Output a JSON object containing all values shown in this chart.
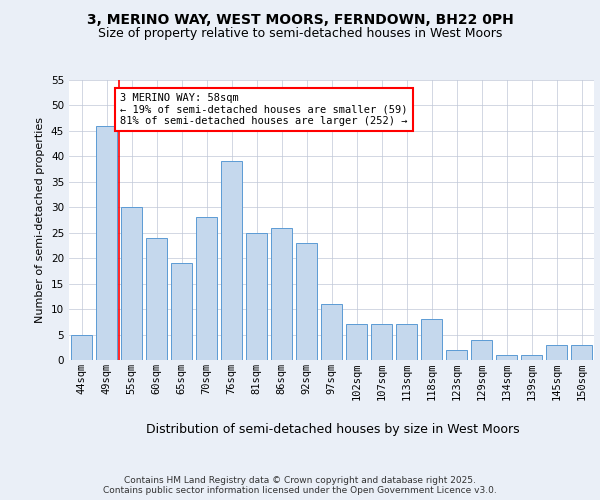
{
  "title": "3, MERINO WAY, WEST MOORS, FERNDOWN, BH22 0PH",
  "subtitle": "Size of property relative to semi-detached houses in West Moors",
  "xlabel": "Distribution of semi-detached houses by size in West Moors",
  "ylabel": "Number of semi-detached properties",
  "categories": [
    "44sqm",
    "49sqm",
    "55sqm",
    "60sqm",
    "65sqm",
    "70sqm",
    "76sqm",
    "81sqm",
    "86sqm",
    "92sqm",
    "97sqm",
    "102sqm",
    "107sqm",
    "113sqm",
    "118sqm",
    "123sqm",
    "129sqm",
    "134sqm",
    "139sqm",
    "145sqm",
    "150sqm"
  ],
  "values": [
    5,
    46,
    30,
    24,
    19,
    28,
    39,
    25,
    26,
    23,
    11,
    7,
    7,
    7,
    8,
    2,
    4,
    1,
    1,
    3,
    3
  ],
  "bar_color": "#c5d8ed",
  "bar_edge_color": "#5b9bd5",
  "highlight_line_index": 2,
  "annotation_title": "3 MERINO WAY: 58sqm",
  "annotation_line1": "← 19% of semi-detached houses are smaller (59)",
  "annotation_line2": "81% of semi-detached houses are larger (252) →",
  "ylim": [
    0,
    55
  ],
  "yticks": [
    0,
    5,
    10,
    15,
    20,
    25,
    30,
    35,
    40,
    45,
    50,
    55
  ],
  "footer": "Contains HM Land Registry data © Crown copyright and database right 2025.\nContains public sector information licensed under the Open Government Licence v3.0.",
  "bg_color": "#eaeff7",
  "plot_bg_color": "#ffffff",
  "grid_color": "#c0c8d8",
  "title_fontsize": 10,
  "subtitle_fontsize": 9,
  "xlabel_fontsize": 9,
  "ylabel_fontsize": 8,
  "tick_fontsize": 7.5,
  "annotation_fontsize": 7.5,
  "footer_fontsize": 6.5
}
